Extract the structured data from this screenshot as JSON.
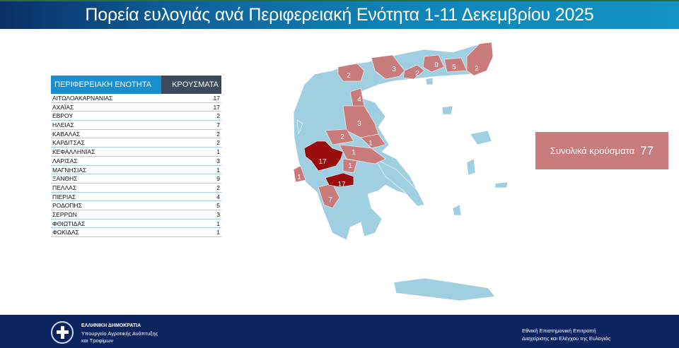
{
  "title": "Πορεία ευλογιάς ανά Περιφερειακή Ενότητα 1-11 Δεκεμβρίου 2025",
  "table": {
    "headers": [
      "ΠΕΡΙΦΕΡΕΙΑΚΗ ΕΝΟΤΗΤΑ",
      "ΚΡΟΥΣΜΑΤΑ"
    ],
    "rows": [
      [
        "ΑΙΤΩΛΟΑΚΑΡΝΑΝΙΑΣ",
        "17"
      ],
      [
        "ΑΧΑΪΑΣ",
        "17"
      ],
      [
        "ΕΒΡΟΥ",
        "2"
      ],
      [
        "ΗΛΕΙΑΣ",
        "7"
      ],
      [
        "ΚΑΒΑΛΑΣ",
        "2"
      ],
      [
        "ΚΑΡΔΙΤΣΑΣ",
        "2"
      ],
      [
        "ΚΕΦΑΛΛΗΝΙΑΣ",
        "1"
      ],
      [
        "ΛΑΡΙΣΑΣ",
        "3"
      ],
      [
        "ΜΑΓΝΗΣΙΑΣ",
        "1"
      ],
      [
        "ΞΑΝΘΗΣ",
        "9"
      ],
      [
        "ΠΕΛΛΑΣ",
        "2"
      ],
      [
        "ΠΙΕΡΙΑΣ",
        "4"
      ],
      [
        "ΡΟΔΟΠΗΣ",
        "5"
      ],
      [
        "ΣΕΡΡΩΝ",
        "3"
      ],
      [
        "ΦΘΙΩΤΙΔΑΣ",
        "1"
      ],
      [
        "ΦΩΚΙΔΑΣ",
        "1"
      ]
    ]
  },
  "total": {
    "label": "Συνολικά κρούσματα",
    "value": "77"
  },
  "map": {
    "labels": [
      "2",
      "3",
      "2",
      "9",
      "5",
      "2",
      "4",
      "3",
      "2",
      "1",
      "1",
      "17",
      "1",
      "17",
      "7",
      "1"
    ],
    "colors": {
      "none": "#9fcfe1",
      "low": "#c97a7a",
      "high": "#9a0d0d"
    }
  },
  "footer": {
    "org1": "ΕΛΛΗΝΙΚΗ ΔΗΜΟΚΡΑΤΙΑ",
    "org2": "Υπουργείο Αγροτικής Ανάπτυξης",
    "org3": "και Τροφίμων",
    "right1": "Εθνική Επιστημονική Επιτροπή",
    "right2": "Διαχείρισης και Ελέγχου της Ευλογιάς"
  }
}
